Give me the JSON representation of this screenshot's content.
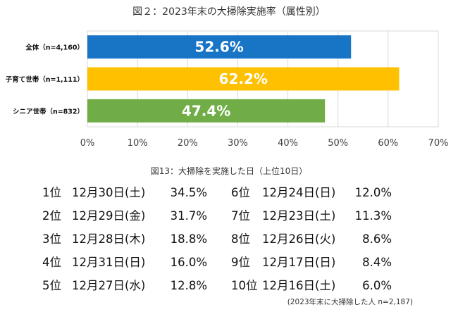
{
  "chart_data": {
    "type": "bar",
    "orientation": "horizontal",
    "title": "図２：2023年末の大掃除実施率（属性別）",
    "categories": [
      "全体（n=4,160）",
      "子育て世帯（n=1,111）",
      "シニア世帯（n=832）"
    ],
    "values": [
      52.6,
      62.2,
      47.4
    ],
    "value_labels": [
      "52.6%",
      "62.2%",
      "47.4%"
    ],
    "colors": [
      "#1874C5",
      "#FFC000",
      "#70AD47"
    ],
    "xlim": [
      0,
      70
    ],
    "xticks": [
      0,
      10,
      20,
      30,
      40,
      50,
      60,
      70
    ],
    "xtick_labels": [
      "0%",
      "10%",
      "20%",
      "30%",
      "40%",
      "50%",
      "60%",
      "70%"
    ],
    "grid": true
  },
  "table": {
    "caption": "図13：大掃除を実施した日（上位10日）",
    "rows": [
      {
        "rank": "1位",
        "date": "12月30日(土)",
        "pct": "34.5%"
      },
      {
        "rank": "2位",
        "date": "12月29日(金)",
        "pct": "31.7%"
      },
      {
        "rank": "3位",
        "date": "12月28日(木)",
        "pct": "18.8%"
      },
      {
        "rank": "4位",
        "date": "12月31日(日)",
        "pct": "16.0%"
      },
      {
        "rank": "5位",
        "date": "12月27日(水)",
        "pct": "12.8%"
      },
      {
        "rank": "6位",
        "date": "12月24日(日)",
        "pct": "12.0%"
      },
      {
        "rank": "7位",
        "date": "12月23日(土)",
        "pct": "11.3%"
      },
      {
        "rank": "8位",
        "date": "12月26日(火)",
        "pct": "8.6%"
      },
      {
        "rank": "9位",
        "date": "12月17日(日)",
        "pct": "8.4%"
      },
      {
        "rank": "10位",
        "date": "12月16日(土)",
        "pct": "6.0%"
      }
    ],
    "footnote": "(2023年末に大掃除した人 n=2,187)"
  }
}
